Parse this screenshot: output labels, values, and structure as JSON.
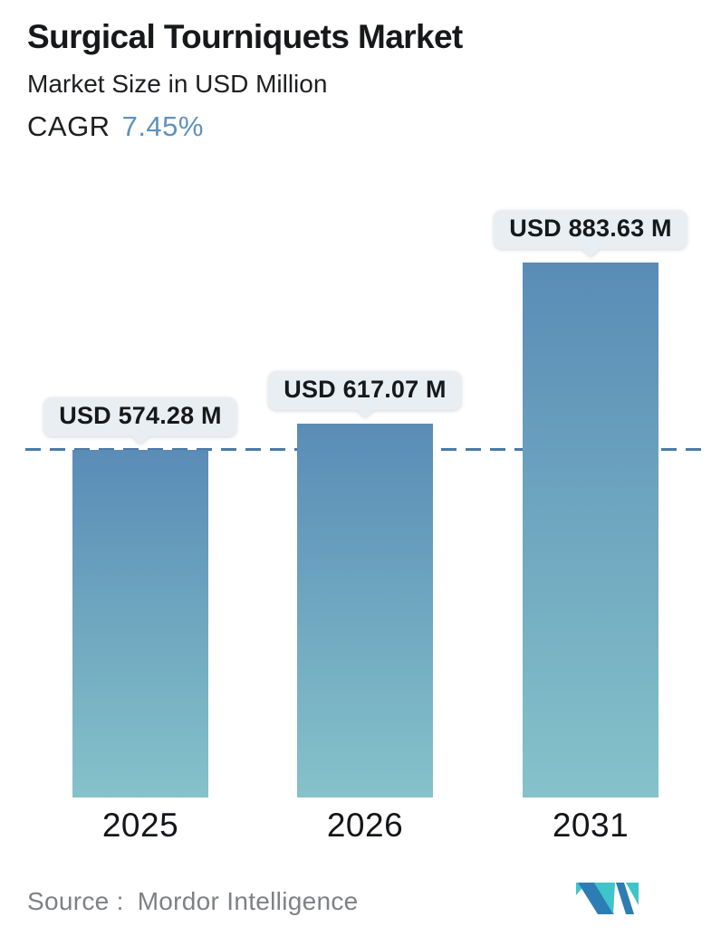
{
  "header": {
    "title": "Surgical Tourniquets Market",
    "subtitle": "Market Size in USD Million",
    "cagr_label": "CAGR",
    "cagr_value": "7.45%"
  },
  "chart_data": {
    "type": "bar",
    "categories": [
      "2025",
      "2026",
      "2031"
    ],
    "values": [
      574.28,
      617.07,
      883.63
    ],
    "value_labels": [
      "USD 574.28 M",
      "USD 617.07 M",
      "USD 883.63 M"
    ],
    "title": "Surgical Tourniquets Market",
    "subtitle": "Market Size in USD Million",
    "unit": "USD Million",
    "cagr": "7.45%",
    "reference_line": {
      "style": "dashed",
      "value": 574.28
    },
    "ylim": [
      0,
      900
    ],
    "grid": false,
    "legend": false
  },
  "footer": {
    "source_label": "Source :",
    "source_name": "Mordor Intelligence"
  },
  "colors": {
    "heading_text": "#16181a",
    "cagr_accent": "#5e92bc",
    "bar_gradient_top": "#5a8cb6",
    "bar_gradient_bottom": "#85c2ca",
    "dashed_line": "#4a7aa6",
    "label_box_bg": "#e8eef2",
    "source_text": "#7e8185",
    "logo_teal": "#3fc4c9",
    "logo_blue": "#2d7cb4"
  }
}
